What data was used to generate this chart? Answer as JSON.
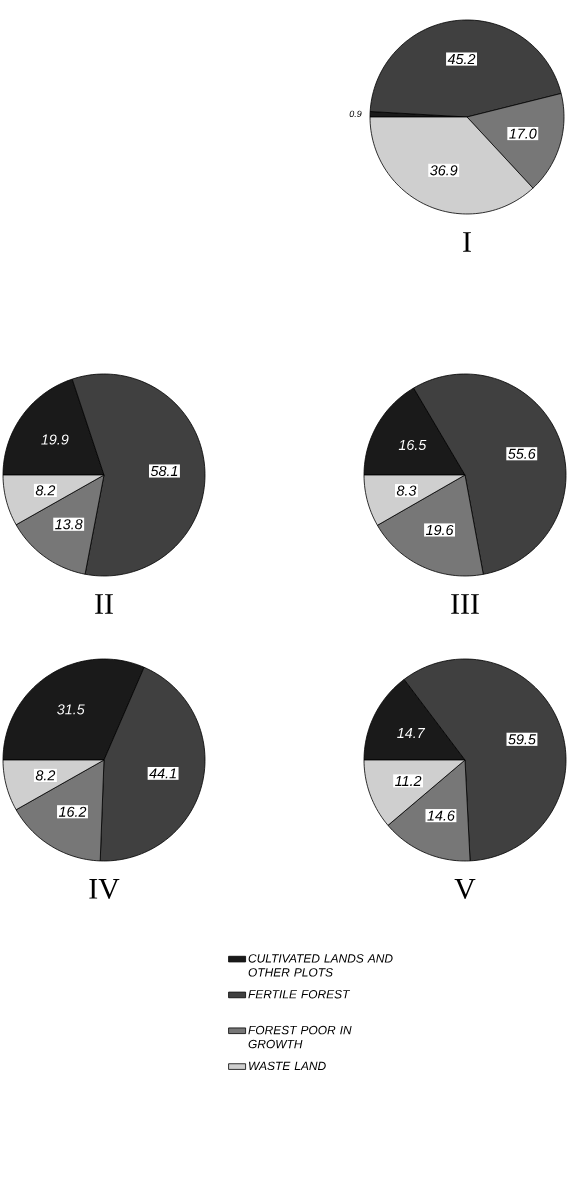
{
  "chart_data": [
    {
      "type": "pie",
      "title": "I",
      "categories": [
        null,
        null,
        null,
        null
      ],
      "values": [
        0.9,
        45.2,
        17.0,
        36.9
      ],
      "value_labels": [
        "0.9",
        "45.2",
        "17.0",
        "36.9"
      ],
      "colors": [
        "#1a1a1a",
        "#404040",
        "#777777",
        "#cfcfcf"
      ]
    },
    {
      "type": "pie",
      "title": "II",
      "categories": [
        null,
        null,
        null,
        null
      ],
      "values": [
        19.9,
        58.1,
        13.8,
        8.2
      ],
      "colors": [
        "#1a1a1a",
        "#404040",
        "#777777",
        "#cfcfcf"
      ],
      "data_labels": true
    },
    {
      "type": "pie",
      "title": "III",
      "categories": [
        null,
        null,
        null,
        null
      ],
      "values": [
        16.5,
        55.6,
        19.6,
        8.3
      ],
      "colors": [
        "#1a1a1a",
        "#404040",
        "#777777",
        "#cfcfcf"
      ],
      "data_labels": true
    },
    {
      "type": "pie",
      "title": "IV",
      "categories": [
        null,
        null,
        null,
        null
      ],
      "values": [
        31.5,
        44.1,
        16.2,
        8.2
      ],
      "colors": [
        "#1a1a1a",
        "#404040",
        "#777777",
        "#cfcfcf"
      ],
      "data_labels": true
    },
    {
      "type": "pie",
      "title": "V",
      "categories": [
        "CULTIVATED LANDS AND OTHER PLOTS",
        "FERTILE FOREST",
        "FOREST POOR IN GROWTH",
        "WASTE LAND"
      ],
      "values": [
        14.7,
        59.5,
        14.6,
        11.2
      ],
      "colors": [
        "#1a1a1a",
        "#404040",
        "#777777",
        "#cfcfcf"
      ],
      "data_labels": true,
      "legend": "bottom"
    }
  ]
}
